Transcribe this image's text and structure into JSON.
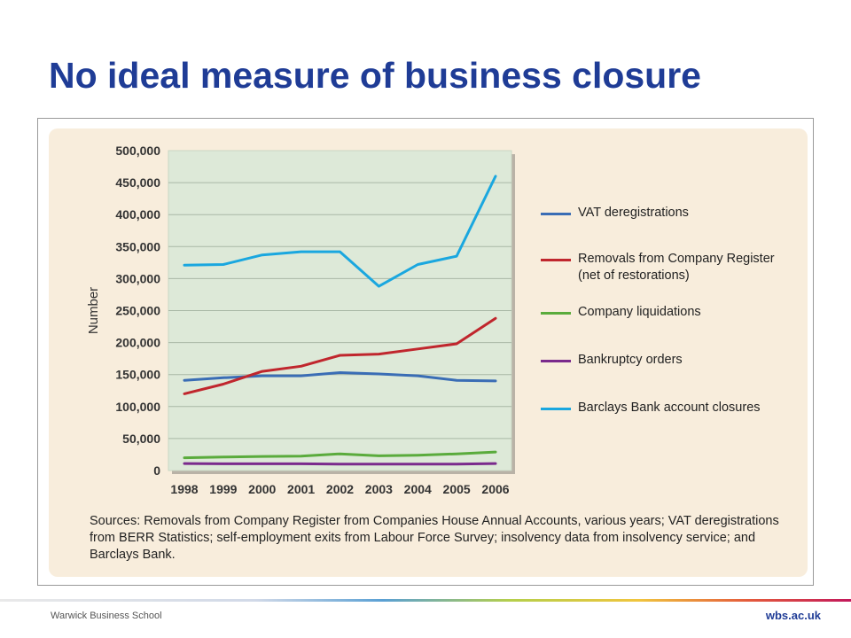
{
  "slide": {
    "title": "No ideal measure of business closure",
    "footer_left": "Warwick Business School",
    "footer_right": "wbs.ac.uk"
  },
  "figure": {
    "sources": "Sources: Removals from Company Register from Companies House Annual Accounts, various years; VAT deregistrations from BERR Statistics; self-employment exits from Labour Force Survey; insolvency data from insolvency service; and Barclays Bank."
  },
  "chart_data": {
    "type": "line",
    "title": "",
    "xlabel": "",
    "ylabel": "Number",
    "x": [
      "1998",
      "1999",
      "2000",
      "2001",
      "2002",
      "2003",
      "2004",
      "2005",
      "2006"
    ],
    "ylim": [
      0,
      500000
    ],
    "yticks": [
      0,
      50000,
      100000,
      150000,
      200000,
      250000,
      300000,
      350000,
      400000,
      450000,
      500000
    ],
    "ytick_labels": [
      "0",
      "50,000",
      "100,000",
      "150,000",
      "200,000",
      "250,000",
      "300,000",
      "350,000",
      "400,000",
      "450,000",
      "500,000"
    ],
    "grid": true,
    "legend_position": "right",
    "series": [
      {
        "name": "VAT deregistrations",
        "color": "#3a6db5",
        "values": [
          141000,
          145000,
          148000,
          148000,
          153000,
          151000,
          148000,
          141000,
          140000
        ]
      },
      {
        "name": "Removals from Company Register (net of restorations)",
        "color": "#c0262d",
        "values": [
          120000,
          135000,
          155000,
          163000,
          180000,
          182000,
          190000,
          198000,
          238000
        ]
      },
      {
        "name": "Company liquidations",
        "color": "#5aab3c",
        "values": [
          20000,
          21000,
          22000,
          22500,
          26000,
          23000,
          24000,
          26000,
          29000
        ]
      },
      {
        "name": "Bankruptcy orders",
        "color": "#7a2a8c",
        "values": [
          11000,
          10500,
          10500,
          10500,
          10000,
          10000,
          10000,
          10000,
          11000
        ]
      },
      {
        "name": "Barclays Bank account closures",
        "color": "#1aa7df",
        "values": [
          321000,
          322000,
          337000,
          342000,
          342000,
          288000,
          322000,
          335000,
          460000
        ]
      }
    ]
  }
}
